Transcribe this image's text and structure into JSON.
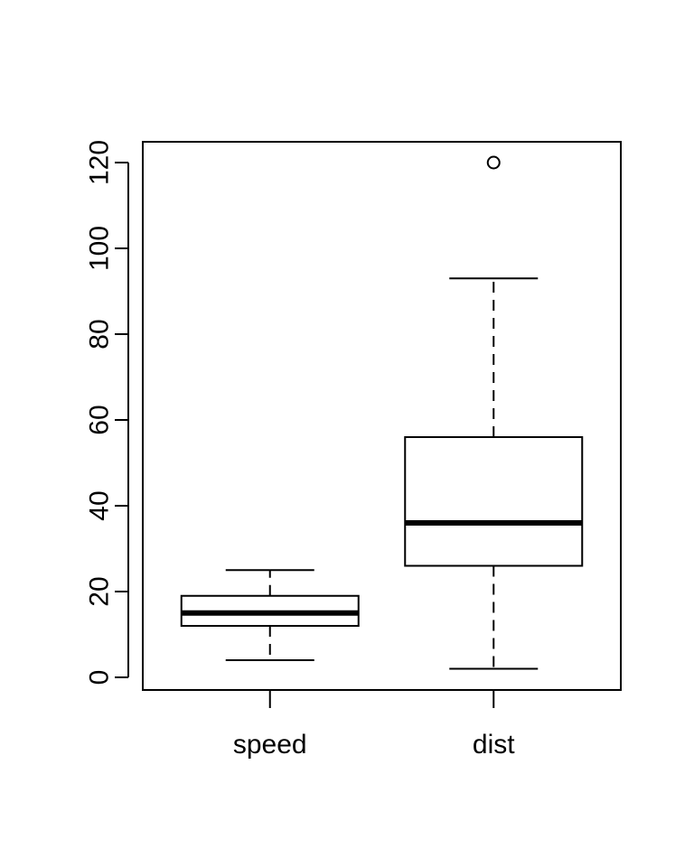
{
  "chart_data": {
    "type": "box",
    "title": "",
    "xlabel": "",
    "ylabel": "",
    "ylim": [
      -3,
      125
    ],
    "yticks": [
      0,
      20,
      40,
      60,
      80,
      100,
      120
    ],
    "yticks_labels": [
      "0",
      "20",
      "40",
      "60",
      "80",
      "100",
      "120"
    ],
    "categories": [
      "speed",
      "dist"
    ],
    "boxes": [
      {
        "category": "speed",
        "whisker_low": 4,
        "q1": 12,
        "median": 15,
        "q3": 19,
        "whisker_high": 25,
        "outliers": []
      },
      {
        "category": "dist",
        "whisker_low": 2,
        "q1": 26,
        "median": 36,
        "q3": 56,
        "whisker_high": 93,
        "outliers": [
          120
        ]
      }
    ],
    "grid": false,
    "legend": "none",
    "colors": {
      "stroke": "#000000",
      "box_fill": "#ffffff",
      "background": "#ffffff"
    }
  }
}
